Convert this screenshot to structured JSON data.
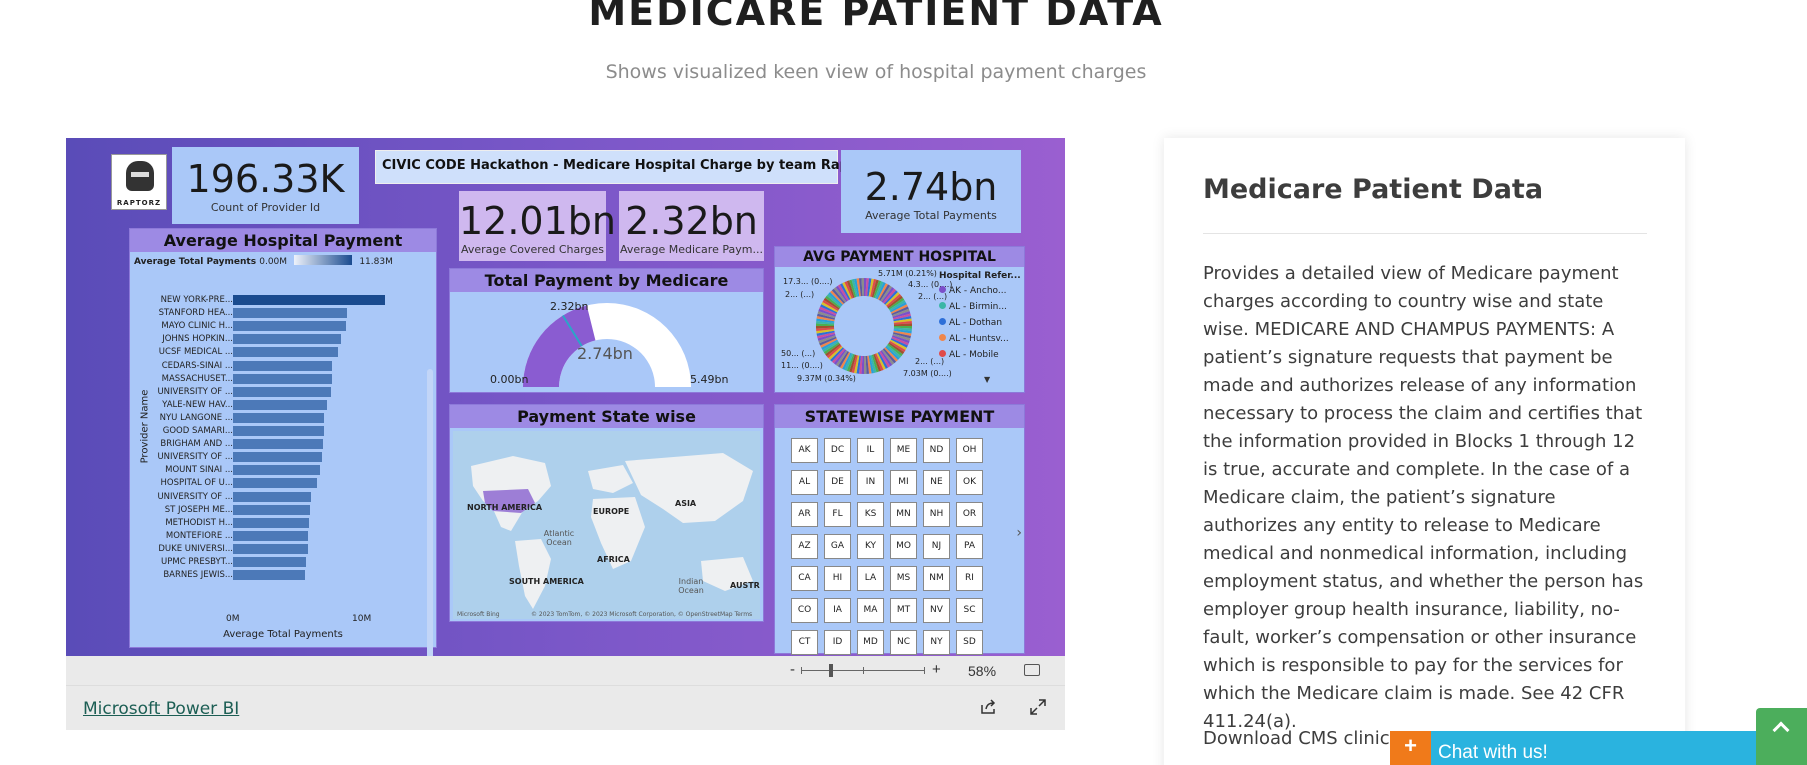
{
  "header": {
    "title": "MEDICARE PATIENT DATA",
    "subtitle": "Shows visualized keen view of hospital payment charges"
  },
  "report": {
    "logo_text": "RAPTORZ",
    "banner_title": "CIVIC CODE Hackathon - Medicare Hospital Charge by team Raptor-TCC",
    "cards": {
      "provider_count": {
        "value": "196.33K",
        "label": "Count of Provider Id"
      },
      "avg_covered": {
        "value": "12.01bn",
        "label": "Average Covered Charges"
      },
      "avg_medicare": {
        "value": "2.32bn",
        "label": "Average Medicare Paym..."
      },
      "avg_total": {
        "value": "2.74bn",
        "label": "Average Total Payments"
      }
    },
    "hospital_payment": {
      "title": "Average Hospital Payment",
      "legend_label": "Average Total Payments",
      "legend_min": "0.00M",
      "legend_max": "11.83M",
      "y_axis_label": "Provider Name",
      "x_axis_label": "Average Total Payments",
      "x_ticks": [
        "0M",
        "10M"
      ]
    },
    "gauge": {
      "title": "Total Payment by Medicare",
      "value_label": "2.32bn",
      "center_label": "2.74bn",
      "min_label": "0.00bn",
      "max_label": "5.49bn"
    },
    "donut": {
      "title": "AVG PAYMENT HOSPITAL",
      "legend_title": "Hospital Refer...",
      "legend": [
        {
          "label": "AK - Ancho...",
          "color": "#7b4fc9"
        },
        {
          "label": "AL - Birmin...",
          "color": "#3bb6a6"
        },
        {
          "label": "AL - Dothan",
          "color": "#2e6fd8"
        },
        {
          "label": "AL - Huntsv...",
          "color": "#f0864b"
        },
        {
          "label": "AL - Mobile",
          "color": "#e04a4a"
        }
      ],
      "annotations": [
        "5.71M (0.21%)",
        "17.3... (0....)",
        "2... (...)",
        "4.3... (0....)",
        "2... (...)",
        "50... (...)",
        "11... (0....)",
        "9.37M (0.34%)",
        "7.03M (0....)",
        "2... (...)"
      ]
    },
    "map": {
      "title": "Payment State wise",
      "labels": [
        "NORTH AMERICA",
        "EUROPE",
        "ASIA",
        "AFRICA",
        "SOUTH AMERICA",
        "AUSTRA"
      ],
      "oceans": [
        "Atlantic\nOcean",
        "Indian\nOcean"
      ],
      "attribution_left": "Microsoft Bing",
      "attribution_right": "© 2023 TomTom, © 2023 Microsoft Corporation, © OpenStreetMap  Terms"
    },
    "statewise": {
      "title": "STATEWISE PAYMENT",
      "states": [
        "AK",
        "DC",
        "IL",
        "ME",
        "ND",
        "OH",
        "AL",
        "DE",
        "IN",
        "MI",
        "NE",
        "OK",
        "AR",
        "FL",
        "KS",
        "MN",
        "NH",
        "OR",
        "AZ",
        "GA",
        "KY",
        "MO",
        "NJ",
        "PA",
        "CA",
        "HI",
        "LA",
        "MS",
        "NM",
        "RI",
        "CO",
        "IA",
        "MA",
        "MT",
        "NV",
        "SC",
        "CT",
        "ID",
        "MD",
        "NC",
        "NY",
        "SD"
      ]
    }
  },
  "hospital_bars": {
    "type": "bar",
    "orientation": "horizontal",
    "categories": [
      "NEW YORK-PRE...",
      "STANFORD HEA...",
      "MAYO CLINIC H...",
      "JOHNS HOPKIN...",
      "UCSF MEDICAL ...",
      "CEDARS-SINAI ...",
      "MASSACHUSET...",
      "UNIVERSITY OF ...",
      "YALE-NEW HAV...",
      "NYU LANGONE ...",
      "GOOD SAMARI...",
      "BRIGHAM AND ...",
      "UNIVERSITY OF ...",
      "MOUNT SINAI ...",
      "HOSPITAL OF U...",
      "UNIVERSITY OF ...",
      "ST JOSEPH ME...",
      "METHODIST H...",
      "MONTEFIORE ...",
      "DUKE UNIVERSI...",
      "UPMC PRESBYT...",
      "BARNES JEWIS..."
    ],
    "values": [
      11.83,
      8.9,
      8.8,
      8.4,
      8.2,
      7.7,
      7.7,
      7.6,
      7.3,
      7.1,
      7.1,
      7.0,
      6.9,
      6.8,
      6.5,
      6.1,
      6.0,
      5.9,
      5.8,
      5.8,
      5.7,
      5.6
    ],
    "xlim": [
      0,
      11.83
    ]
  },
  "toolbar": {
    "zoom_minus": "-",
    "zoom_plus": "+",
    "zoom_value": "58%",
    "zoom_fraction": 0.24
  },
  "footer": {
    "link_label": "Microsoft Power BI"
  },
  "side": {
    "title": "Medicare Patient Data",
    "body": "Provides a detailed view of Medicare payment charges according to country wise and state wise. MEDICARE AND CHAMPUS PAYMENTS: A patient’s signature requests that payment be made and authorizes release of any information necessary to process the claim and certifies that the information provided in Blocks 1 through 12 is true, accurate and complete. In the case of a Medicare claim, the patient’s signature authorizes any entity to release to Medicare medical and nonmedical information, including employment status, and whether the person has employer group health insurance, liability, no-fault, worker’s compensation or other insurance which is responsible to pay for the services for which the Medicare claim is made. See 42 CFR 411.24(a).",
    "download": "Download CMS clinica"
  },
  "chat": {
    "plus": "+",
    "label": "Chat with us!"
  },
  "colors": {
    "bar": "#4c79b8",
    "bar_top": "#1a4b8f",
    "gauge_fill": "#8a5cd1",
    "chat": "#2ab3df",
    "chat_plus": "#f07a1a",
    "scroll_top": "#4cae5c"
  }
}
